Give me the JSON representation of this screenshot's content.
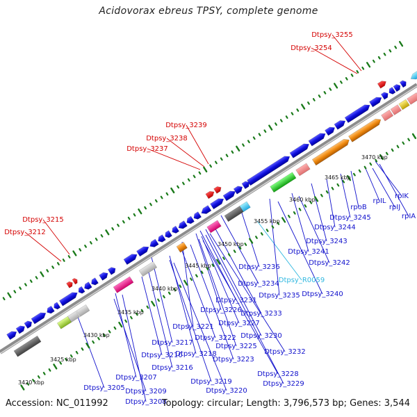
{
  "title": "Acidovorax ebreus TPSY, complete genome",
  "accession": "Accession: NC_011992",
  "topology": "Topology: circular; Length: 3,796,573 bp; Genes: 3,544",
  "colors": {
    "backbone": "#8c8c8c",
    "tick_dot": "#1a7a1a",
    "red_label": "#d40000",
    "blue_label": "#1010cc",
    "cyan_label": "#30b8e0"
  },
  "kbp_labels": [
    "3420 kbp",
    "3425 kbp",
    "3430 kbp",
    "3435 kbp",
    "3440 kbp",
    "3445 kbp",
    "3450 kbp",
    "3455 kbp",
    "3460 kbp",
    "3465 kbp",
    "3470 kbp"
  ],
  "red_labels": [
    "Dtpsy_3215",
    "Dtpsy_3212",
    "Dtpsy_3239",
    "Dtpsy_3238",
    "Dtpsy_3237",
    "Dtpsy_3255",
    "Dtpsy_3254"
  ],
  "cyan_labels": [
    "Dtpsy_R0059"
  ],
  "blue_labels": [
    "rpIK",
    "rpIL",
    "rpIJ",
    "rpIA",
    "rpoB",
    "Dtpsy_3245",
    "Dtpsy_3244",
    "Dtpsy_3243",
    "Dtpsy_3241",
    "Dtpsy_3242",
    "Dtpsy_3236",
    "Dtpsy_3240",
    "Dtpsy_3234",
    "Dtpsy_3235",
    "Dtpsy_3231",
    "Dtpsy_3226",
    "Dtpsy_3233",
    "Dtpsy_3227",
    "Dtpsy_3221",
    "Dtpsy_3230",
    "Dtpsy_3222",
    "Dtpsy_3225",
    "Dtpsy_3217",
    "Dtpsy_3218",
    "Dtpsy_3232",
    "Dtpsy_3210",
    "Dtpsy_3223",
    "Dtpsy_3216",
    "Dtpsy_3228",
    "Dtpsy_3207",
    "Dtpsy_3219",
    "Dtpsy_3229",
    "Dtpsy_3205",
    "Dtpsy_3209",
    "Dtpsy_3220",
    "Dtpsy_3208"
  ]
}
